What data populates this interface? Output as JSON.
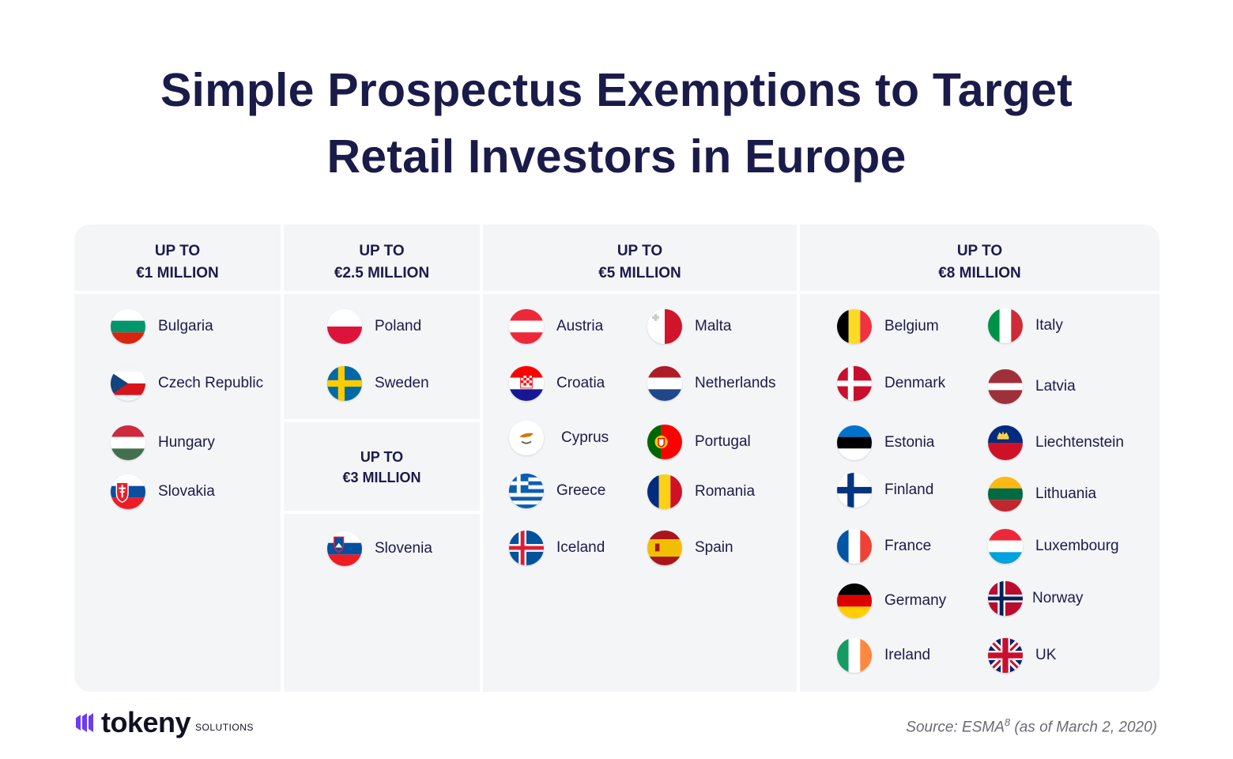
{
  "title": {
    "line1": "Simple Prospectus Exemptions to Target",
    "line2": "Retail Investors in Europe"
  },
  "columns": {
    "col1": {
      "header_line1": "UP TO",
      "header_line2": "€1 MILLION",
      "countries": [
        {
          "name": "Bulgaria",
          "flag": "flag-bulgaria"
        },
        {
          "name": "Czech Republic",
          "flag": "flag-czech-republic"
        },
        {
          "name": "Hungary",
          "flag": "flag-hungary"
        },
        {
          "name": "Slovakia",
          "flag": "flag-slovakia"
        }
      ]
    },
    "col2": {
      "header_line1": "UP TO",
      "header_line2": "€2.5 MILLION",
      "countries": [
        {
          "name": "Poland",
          "flag": "flag-poland"
        },
        {
          "name": "Sweden",
          "flag": "flag-sweden"
        }
      ],
      "sub_header_line1": "UP TO",
      "sub_header_line2": "€3 MILLION",
      "sub_countries": [
        {
          "name": "Slovenia",
          "flag": "flag-slovenia"
        }
      ]
    },
    "col3": {
      "header_line1": "UP TO",
      "header_line2": "€5 MILLION",
      "countries": [
        {
          "name": "Austria",
          "flag": "flag-austria"
        },
        {
          "name": "Croatia",
          "flag": "flag-croatia"
        },
        {
          "name": "Cyprus",
          "flag": "flag-cyprus"
        },
        {
          "name": "Greece",
          "flag": "flag-greece"
        },
        {
          "name": "Iceland",
          "flag": "flag-iceland"
        },
        {
          "name": "Malta",
          "flag": "flag-malta"
        },
        {
          "name": "Netherlands",
          "flag": "flag-netherlands"
        },
        {
          "name": "Portugal",
          "flag": "flag-portugal"
        },
        {
          "name": "Romania",
          "flag": "flag-romania"
        },
        {
          "name": "Spain",
          "flag": "flag-spain"
        }
      ]
    },
    "col4": {
      "header_line1": "UP TO",
      "header_line2": "€8 MILLION",
      "countries": [
        {
          "name": "Belgium",
          "flag": "flag-belgium"
        },
        {
          "name": "Denmark",
          "flag": "flag-denmark"
        },
        {
          "name": "Estonia",
          "flag": "flag-estonia"
        },
        {
          "name": "Finland",
          "flag": "flag-finland"
        },
        {
          "name": "France",
          "flag": "flag-france"
        },
        {
          "name": "Germany",
          "flag": "flag-germany"
        },
        {
          "name": "Ireland",
          "flag": "flag-ireland"
        },
        {
          "name": "Italy",
          "flag": "flag-italy"
        },
        {
          "name": "Latvia",
          "flag": "flag-latvia"
        },
        {
          "name": "Liechtenstein",
          "flag": "flag-liechtenstein"
        },
        {
          "name": "Lithuania",
          "flag": "flag-lithuania"
        },
        {
          "name": "Luxembourg",
          "flag": "flag-luxembourg"
        },
        {
          "name": "Norway",
          "flag": "flag-norway"
        },
        {
          "name": "UK",
          "flag": "flag-uk"
        }
      ]
    }
  },
  "logo": {
    "word": "tokeny",
    "sub": "SOLUTIONS"
  },
  "source": {
    "text": "Source: ESMA",
    "sup": "8",
    "suffix": " (as of March 2, 2020)"
  },
  "colors": {
    "title": "#1b1b4a",
    "panel": "#f4f5f7",
    "logo_accent": "#6c3cf5"
  }
}
